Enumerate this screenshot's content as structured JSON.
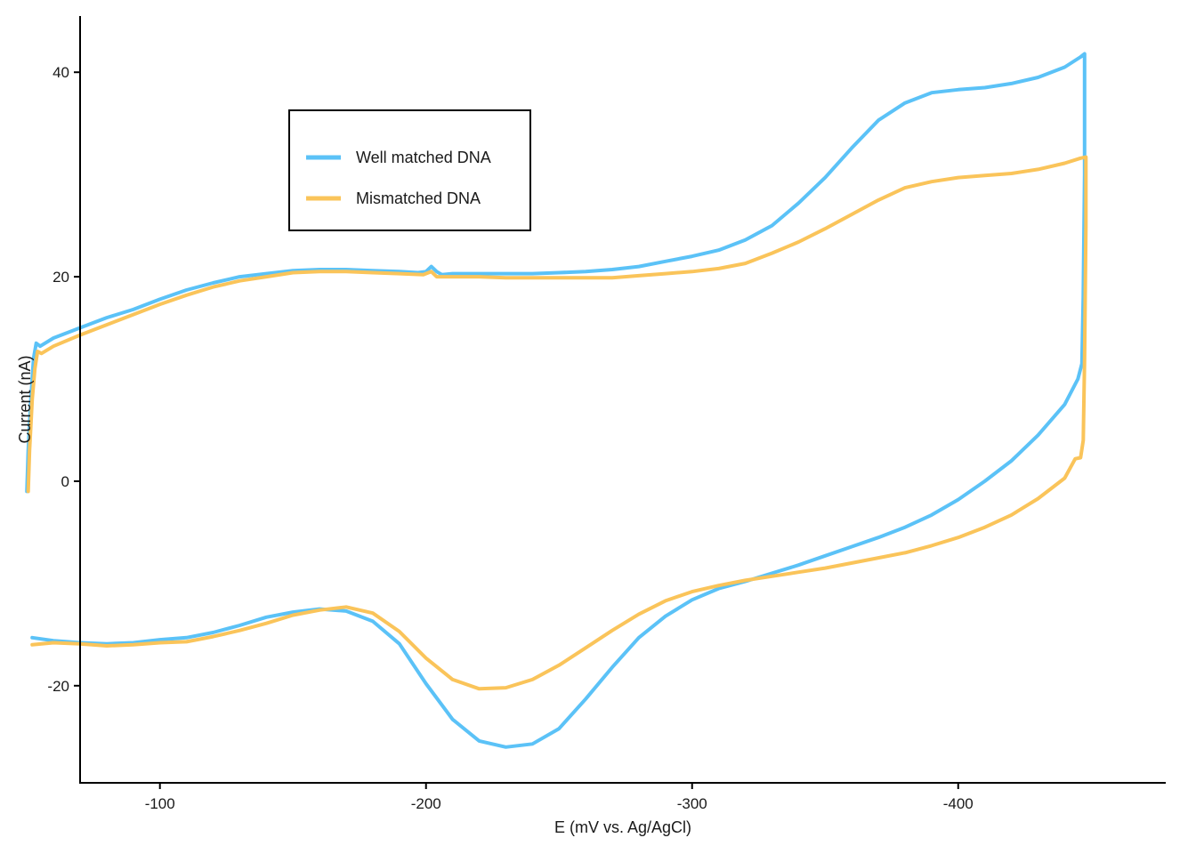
{
  "chart_data": {
    "type": "line",
    "xlabel": "E (mV vs. Ag/AgCl)",
    "ylabel": "Current (nA)",
    "xlim": [
      -70,
      -478
    ],
    "ylim": [
      -29.5,
      45.5
    ],
    "x_reversed": true,
    "x_ticks": [
      -100,
      -200,
      -300,
      -400
    ],
    "y_ticks": [
      -20,
      0,
      20,
      40
    ],
    "x_tick_labels": [
      "-100",
      "-200",
      "-300",
      "-400"
    ],
    "y_tick_labels": [
      "-20",
      "0",
      "20",
      "40"
    ],
    "grid": false,
    "legend": {
      "placement": "top-left",
      "entries": [
        "Well matched DNA",
        "Mismatched DNA"
      ]
    },
    "series": [
      {
        "name": "Well matched DNA",
        "color": "#5BC2F7",
        "points": [
          [
            -50,
            -1
          ],
          [
            -50.5,
            3
          ],
          [
            -51.5,
            8
          ],
          [
            -52.5,
            12
          ],
          [
            -53.5,
            13.5
          ],
          [
            -55,
            13.2
          ],
          [
            -60,
            14
          ],
          [
            -70,
            15
          ],
          [
            -80,
            16
          ],
          [
            -90,
            16.8
          ],
          [
            -100,
            17.8
          ],
          [
            -110,
            18.7
          ],
          [
            -120,
            19.4
          ],
          [
            -130,
            20
          ],
          [
            -140,
            20.3
          ],
          [
            -150,
            20.6
          ],
          [
            -160,
            20.7
          ],
          [
            -170,
            20.7
          ],
          [
            -180,
            20.6
          ],
          [
            -190,
            20.5
          ],
          [
            -197,
            20.4
          ],
          [
            -200,
            20.5
          ],
          [
            -202,
            21
          ],
          [
            -204,
            20.5
          ],
          [
            -206,
            20.2
          ],
          [
            -210,
            20.3
          ],
          [
            -220,
            20.3
          ],
          [
            -230,
            20.3
          ],
          [
            -240,
            20.3
          ],
          [
            -250,
            20.4
          ],
          [
            -260,
            20.5
          ],
          [
            -270,
            20.7
          ],
          [
            -280,
            21
          ],
          [
            -290,
            21.5
          ],
          [
            -300,
            22
          ],
          [
            -310,
            22.6
          ],
          [
            -320,
            23.6
          ],
          [
            -330,
            25
          ],
          [
            -340,
            27.2
          ],
          [
            -350,
            29.7
          ],
          [
            -360,
            32.6
          ],
          [
            -370,
            35.3
          ],
          [
            -380,
            37
          ],
          [
            -390,
            38
          ],
          [
            -400,
            38.3
          ],
          [
            -410,
            38.5
          ],
          [
            -420,
            38.9
          ],
          [
            -430,
            39.5
          ],
          [
            -440,
            40.5
          ],
          [
            -446,
            41.5
          ],
          [
            -447.5,
            41.8
          ],
          [
            -447.5,
            30
          ],
          [
            -447,
            18
          ],
          [
            -446.5,
            11.5
          ],
          [
            -445,
            10
          ],
          [
            -440,
            7.5
          ],
          [
            -430,
            4.5
          ],
          [
            -420,
            2
          ],
          [
            -410,
            0
          ],
          [
            -400,
            -1.8
          ],
          [
            -390,
            -3.3
          ],
          [
            -380,
            -4.5
          ],
          [
            -370,
            -5.5
          ],
          [
            -360,
            -6.4
          ],
          [
            -350,
            -7.3
          ],
          [
            -340,
            -8.2
          ],
          [
            -330,
            -9
          ],
          [
            -320,
            -9.8
          ],
          [
            -310,
            -10.5
          ],
          [
            -300,
            -11.6
          ],
          [
            -290,
            -13.2
          ],
          [
            -280,
            -15.3
          ],
          [
            -270,
            -18.2
          ],
          [
            -260,
            -21.3
          ],
          [
            -250,
            -24.2
          ],
          [
            -240,
            -25.7
          ],
          [
            -230,
            -26
          ],
          [
            -220,
            -25.4
          ],
          [
            -210,
            -23.3
          ],
          [
            -200,
            -19.8
          ],
          [
            -190,
            -15.9
          ],
          [
            -180,
            -13.7
          ],
          [
            -170,
            -12.7
          ],
          [
            -160,
            -12.5
          ],
          [
            -150,
            -12.8
          ],
          [
            -140,
            -13.3
          ],
          [
            -130,
            -14.1
          ],
          [
            -120,
            -14.8
          ],
          [
            -110,
            -15.3
          ],
          [
            -100,
            -15.5
          ],
          [
            -90,
            -15.8
          ],
          [
            -80,
            -15.9
          ],
          [
            -70,
            -15.8
          ],
          [
            -60,
            -15.6
          ],
          [
            -52,
            -15.3
          ]
        ]
      },
      {
        "name": "Mismatched DNA",
        "color": "#FAC45A",
        "points": [
          [
            -50.5,
            -1
          ],
          [
            -51,
            3
          ],
          [
            -52,
            8
          ],
          [
            -53,
            11
          ],
          [
            -54,
            12.7
          ],
          [
            -55.5,
            12.5
          ],
          [
            -60,
            13.2
          ],
          [
            -70,
            14.3
          ],
          [
            -80,
            15.3
          ],
          [
            -90,
            16.3
          ],
          [
            -100,
            17.3
          ],
          [
            -110,
            18.2
          ],
          [
            -120,
            19
          ],
          [
            -130,
            19.6
          ],
          [
            -140,
            20
          ],
          [
            -150,
            20.4
          ],
          [
            -160,
            20.5
          ],
          [
            -170,
            20.5
          ],
          [
            -180,
            20.4
          ],
          [
            -190,
            20.3
          ],
          [
            -199,
            20.2
          ],
          [
            -202,
            20.5
          ],
          [
            -204,
            20
          ],
          [
            -210,
            20
          ],
          [
            -220,
            20
          ],
          [
            -230,
            19.9
          ],
          [
            -240,
            19.9
          ],
          [
            -250,
            19.9
          ],
          [
            -260,
            19.9
          ],
          [
            -270,
            19.9
          ],
          [
            -280,
            20.1
          ],
          [
            -290,
            20.3
          ],
          [
            -300,
            20.5
          ],
          [
            -310,
            20.8
          ],
          [
            -320,
            21.3
          ],
          [
            -330,
            22.3
          ],
          [
            -340,
            23.4
          ],
          [
            -350,
            24.7
          ],
          [
            -360,
            26.1
          ],
          [
            -370,
            27.5
          ],
          [
            -380,
            28.7
          ],
          [
            -390,
            29.3
          ],
          [
            -400,
            29.7
          ],
          [
            -410,
            29.9
          ],
          [
            -420,
            30.1
          ],
          [
            -430,
            30.5
          ],
          [
            -440,
            31.1
          ],
          [
            -446,
            31.6
          ],
          [
            -448,
            31.7
          ],
          [
            -448,
            25
          ],
          [
            -447.5,
            12
          ],
          [
            -447,
            4
          ],
          [
            -446,
            2.3
          ],
          [
            -444,
            2.2
          ],
          [
            -440,
            0.3
          ],
          [
            -430,
            -1.7
          ],
          [
            -420,
            -3.3
          ],
          [
            -410,
            -4.5
          ],
          [
            -400,
            -5.5
          ],
          [
            -390,
            -6.3
          ],
          [
            -380,
            -7
          ],
          [
            -370,
            -7.5
          ],
          [
            -360,
            -8
          ],
          [
            -350,
            -8.5
          ],
          [
            -340,
            -8.9
          ],
          [
            -330,
            -9.3
          ],
          [
            -320,
            -9.7
          ],
          [
            -310,
            -10.2
          ],
          [
            -300,
            -10.8
          ],
          [
            -290,
            -11.7
          ],
          [
            -280,
            -13
          ],
          [
            -270,
            -14.6
          ],
          [
            -260,
            -16.3
          ],
          [
            -250,
            -18
          ],
          [
            -240,
            -19.4
          ],
          [
            -230,
            -20.2
          ],
          [
            -220,
            -20.3
          ],
          [
            -210,
            -19.4
          ],
          [
            -200,
            -17.3
          ],
          [
            -190,
            -14.7
          ],
          [
            -180,
            -12.9
          ],
          [
            -170,
            -12.3
          ],
          [
            -160,
            -12.6
          ],
          [
            -150,
            -13.1
          ],
          [
            -140,
            -13.9
          ],
          [
            -130,
            -14.6
          ],
          [
            -120,
            -15.2
          ],
          [
            -110,
            -15.7
          ],
          [
            -100,
            -15.8
          ],
          [
            -90,
            -16
          ],
          [
            -80,
            -16.1
          ],
          [
            -70,
            -15.9
          ],
          [
            -60,
            -15.8
          ],
          [
            -52,
            -16
          ]
        ]
      }
    ]
  }
}
